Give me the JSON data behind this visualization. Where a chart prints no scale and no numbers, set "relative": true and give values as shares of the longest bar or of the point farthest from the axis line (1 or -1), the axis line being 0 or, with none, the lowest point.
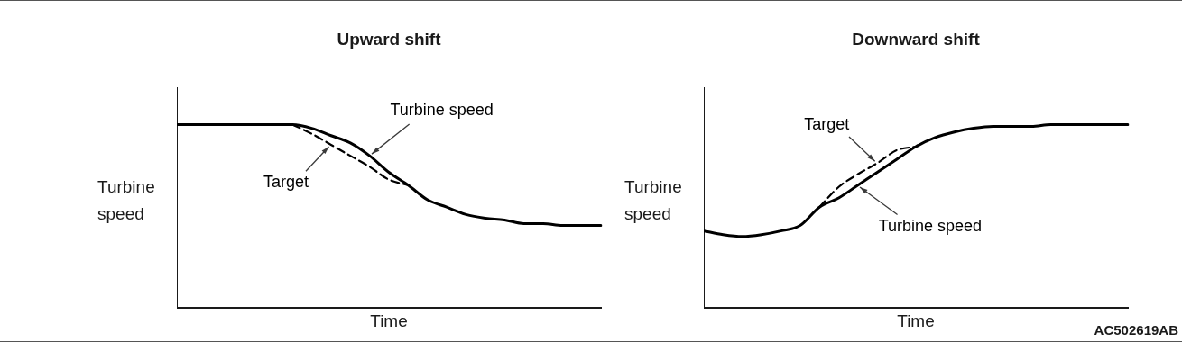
{
  "chart_data": [
    {
      "type": "line",
      "title": "Upward shift",
      "xlabel": "Time",
      "ylabel": "Turbine speed",
      "relative": true,
      "legend": false,
      "grid": false,
      "marker": "none",
      "categories": [
        null,
        null,
        null,
        null,
        null,
        null,
        null,
        null,
        null,
        null,
        null,
        null,
        null,
        null,
        null,
        null,
        null,
        null,
        null,
        null,
        null,
        null,
        null
      ],
      "series": [
        {
          "name": "Turbine speed",
          "color": "#000000",
          "line_style": "solid",
          "values": [
            1,
            1,
            1,
            1,
            1,
            1,
            1,
            0.98,
            0.94,
            0.9,
            0.83,
            0.74,
            0.67,
            0.59,
            0.55,
            0.51,
            0.49,
            0.48,
            0.46,
            0.46,
            0.45,
            0.45,
            0.45
          ]
        },
        {
          "name": "Target",
          "color": "#000000",
          "line_style": "dashed",
          "values": [
            null,
            null,
            null,
            null,
            null,
            null,
            1,
            0.95,
            0.89,
            0.83,
            0.77,
            0.7,
            0.67,
            null,
            null,
            null,
            null,
            null,
            null,
            null,
            null,
            null,
            null
          ]
        }
      ]
    },
    {
      "type": "line",
      "title": "Downward shift",
      "xlabel": "Time",
      "ylabel": "Turbine speed",
      "relative": true,
      "legend": false,
      "grid": false,
      "marker": "none",
      "annotations": [
        "AC502619AB"
      ],
      "categories": [
        null,
        null,
        null,
        null,
        null,
        null,
        null,
        null,
        null,
        null,
        null,
        null,
        null,
        null,
        null,
        null,
        null,
        null,
        null,
        null,
        null,
        null,
        null
      ],
      "series": [
        {
          "name": "Target",
          "color": "#000000",
          "line_style": "dashed",
          "values": [
            null,
            null,
            null,
            null,
            null,
            null,
            0.55,
            0.66,
            0.73,
            0.79,
            0.86,
            0.88,
            null,
            null,
            null,
            null,
            null,
            null,
            null,
            null,
            null,
            null,
            null
          ]
        },
        {
          "name": "Turbine speed",
          "color": "#000000",
          "line_style": "solid",
          "values": [
            0.42,
            0.4,
            0.39,
            0.4,
            0.42,
            0.45,
            0.55,
            0.6,
            0.67,
            0.74,
            0.81,
            0.88,
            0.93,
            0.96,
            0.98,
            0.99,
            0.99,
            0.99,
            1,
            1,
            1,
            1,
            1
          ]
        }
      ]
    }
  ]
}
